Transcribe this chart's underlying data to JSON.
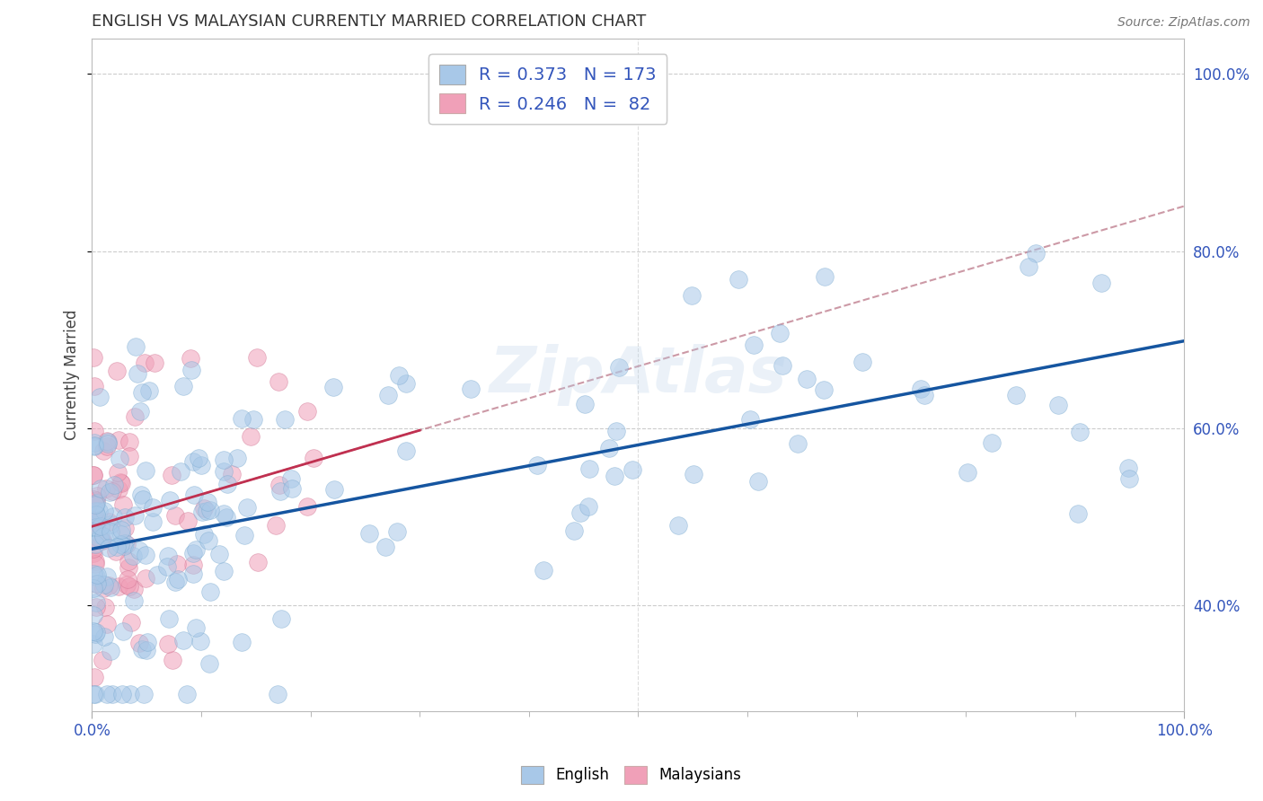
{
  "title": "ENGLISH VS MALAYSIAN CURRENTLY MARRIED CORRELATION CHART",
  "source_text": "Source: ZipAtlas.com",
  "ylabel": "Currently Married",
  "xlim": [
    0.0,
    1.0
  ],
  "ylim": [
    0.28,
    1.04
  ],
  "english_color": "#A8C8E8",
  "english_edge_color": "#7AAAD0",
  "malaysian_color": "#F0A0B8",
  "malaysian_edge_color": "#D07090",
  "english_R": 0.373,
  "english_N": 173,
  "malaysian_R": 0.246,
  "malaysian_N": 82,
  "trendline_english_color": "#1555A0",
  "trendline_malaysian_color": "#C03050",
  "trendline_dashed_color": "#C08090",
  "watermark": "ZipAtlas",
  "legend_label_english": "English",
  "legend_label_malaysians": "Malaysians",
  "ytick_positions": [
    0.4,
    0.6,
    0.8,
    1.0
  ],
  "ytick_labels": [
    "40.0%",
    "60.0%",
    "80.0%",
    "100.0%"
  ],
  "scatter_size": 200,
  "scatter_alpha": 0.55,
  "eng_seed": 12,
  "mal_seed": 77
}
